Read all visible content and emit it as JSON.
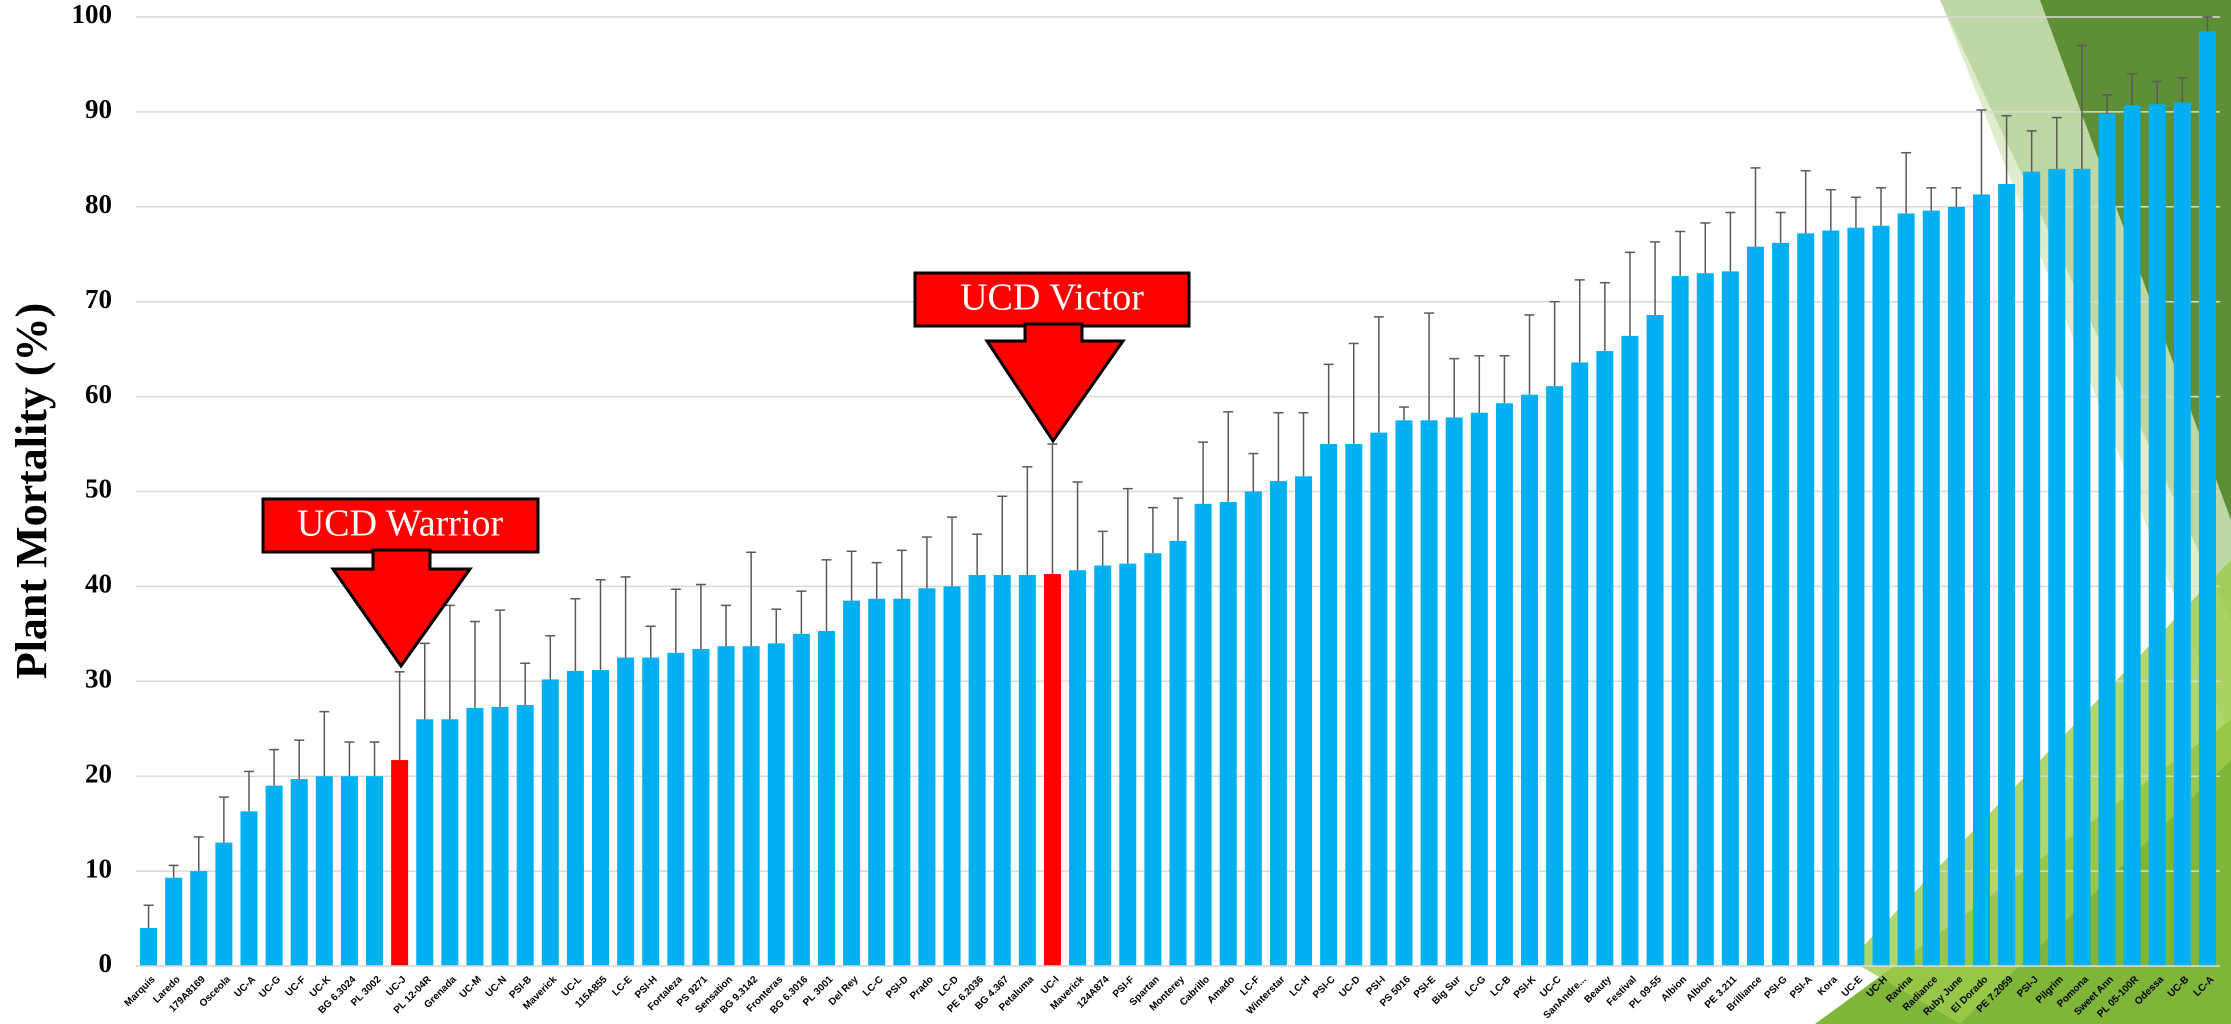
{
  "chart_data": {
    "type": "bar",
    "y_label": "Plant Mortality (%)",
    "categories": [
      "Marquis",
      "Laredo",
      "179A8169",
      "Osceola",
      "UC-A",
      "UC-G",
      "UC-F",
      "UC-K",
      "BG 6.3024",
      "PL 3002",
      "UC-J",
      "PL 12-04R",
      "Grenada",
      "UC-M",
      "UC-N",
      "PSI-B",
      "Maverick",
      "UC-L",
      "115A855",
      "LC-E",
      "PSI-H",
      "Fortaleza",
      "PS 9271",
      "Sensation",
      "BG 9.3142",
      "Fronteras",
      "BG 6.3016",
      "PL 3001",
      "Del Rey",
      "LC-C",
      "PSI-D",
      "Prado",
      "LC-D",
      "PE 6.2036",
      "BG 4.367",
      "Petaluma",
      "UC-I",
      "Maverick",
      "124A874",
      "PSI-F",
      "Spartan",
      "Monterey",
      "Cabrillo",
      "Amado",
      "LC-F",
      "Winterstar",
      "LC-H",
      "PSI-C",
      "UC-D",
      "PSI-I",
      "PS 5016",
      "PSI-E",
      "Big Sur",
      "LC-G",
      "LC-B",
      "PSI-K",
      "UC-C",
      "SanAndre...",
      "Beauty",
      "Festival",
      "PL 09-55",
      "Albion",
      "Albion",
      "PE 3.211",
      "Brilliance",
      "PSI-G",
      "PSI-A",
      "Kora",
      "UC-E",
      "UC-H",
      "Ravina",
      "Radiance",
      "Ruby June",
      "El Dorado",
      "PE 7.2059",
      "PSI-J",
      "Pilgrim",
      "Pomona",
      "Sweet Ann",
      "PL 05-100R",
      "Odessa",
      "UC-B",
      "LC-A"
    ],
    "values": [
      4,
      9.3,
      10,
      13,
      16.3,
      19,
      19.7,
      20,
      20,
      20,
      21.7,
      26,
      26,
      27.2,
      27.3,
      27.5,
      30.2,
      31.1,
      31.2,
      32.5,
      32.5,
      33,
      33.4,
      33.7,
      33.7,
      34,
      35,
      35.3,
      38.5,
      38.7,
      38.7,
      39.8,
      40,
      41.2,
      41.2,
      41.2,
      41.3,
      41.7,
      42.2,
      42.4,
      43.5,
      44.8,
      48.7,
      48.9,
      50,
      51.1,
      51.6,
      55,
      55,
      56.2,
      57.5,
      57.5,
      57.8,
      58.3,
      59.3,
      60.2,
      61.1,
      63.6,
      64.8,
      66.4,
      68.6,
      72.7,
      73,
      73.2,
      75.8,
      76.2,
      77.2,
      77.5,
      77.8,
      78,
      79.3,
      79.6,
      80,
      81.3,
      82.4,
      83.7,
      84,
      84,
      89.8,
      90.7,
      90.8,
      91,
      98.5
    ],
    "errors": [
      2.4,
      1.3,
      3.6,
      4.8,
      4.2,
      3.8,
      4.1,
      6.8,
      3.6,
      3.6,
      9.3,
      8,
      12,
      9.1,
      10.2,
      4.4,
      4.6,
      7.6,
      9.5,
      8.5,
      3.3,
      6.7,
      6.8,
      4.3,
      9.9,
      3.6,
      4.5,
      7.5,
      5.2,
      3.8,
      5.1,
      5.4,
      7.3,
      4.3,
      8.3,
      11.4,
      13.7,
      9.3,
      3.6,
      7.9,
      4.8,
      4.5,
      6.5,
      9.5,
      4,
      7.2,
      6.7,
      8.4,
      10.6,
      12.2,
      1.4,
      11.3,
      6.2,
      6,
      5,
      8.4,
      8.9,
      8.7,
      7.2,
      8.8,
      7.7,
      4.7,
      5.3,
      6.2,
      8.3,
      3.2,
      6.6,
      4.3,
      3.2,
      4,
      6.4,
      2.4,
      2,
      8.9,
      7.2,
      4.3,
      5.4,
      13,
      2,
      3.3,
      2.4,
      2.6,
      1.5
    ],
    "colors": [
      "#00b0f0",
      "#00b0f0",
      "#00b0f0",
      "#00b0f0",
      "#00b0f0",
      "#00b0f0",
      "#00b0f0",
      "#00b0f0",
      "#00b0f0",
      "#00b0f0",
      "#ff0000",
      "#00b0f0",
      "#00b0f0",
      "#00b0f0",
      "#00b0f0",
      "#00b0f0",
      "#00b0f0",
      "#00b0f0",
      "#00b0f0",
      "#00b0f0",
      "#00b0f0",
      "#00b0f0",
      "#00b0f0",
      "#00b0f0",
      "#00b0f0",
      "#00b0f0",
      "#00b0f0",
      "#00b0f0",
      "#00b0f0",
      "#00b0f0",
      "#00b0f0",
      "#00b0f0",
      "#00b0f0",
      "#00b0f0",
      "#00b0f0",
      "#00b0f0",
      "#ff0000",
      "#00b0f0",
      "#00b0f0",
      "#00b0f0",
      "#00b0f0",
      "#00b0f0",
      "#00b0f0",
      "#00b0f0",
      "#00b0f0",
      "#00b0f0",
      "#00b0f0",
      "#00b0f0",
      "#00b0f0",
      "#00b0f0",
      "#00b0f0",
      "#00b0f0",
      "#00b0f0",
      "#00b0f0",
      "#00b0f0",
      "#00b0f0",
      "#00b0f0",
      "#00b0f0",
      "#00b0f0",
      "#00b0f0",
      "#00b0f0",
      "#00b0f0",
      "#00b0f0",
      "#00b0f0",
      "#00b0f0",
      "#00b0f0",
      "#00b0f0",
      "#00b0f0",
      "#00b0f0",
      "#00b0f0",
      "#00b0f0",
      "#00b0f0",
      "#00b0f0",
      "#00b0f0",
      "#00b0f0",
      "#00b0f0",
      "#00b0f0",
      "#00b0f0",
      "#00b0f0",
      "#00b0f0",
      "#00b0f0",
      "#00b0f0",
      "#00b0f0"
    ],
    "error_color": "#595959",
    "ylim": [
      0,
      100
    ],
    "yticks": [
      0,
      10,
      20,
      30,
      40,
      50,
      60,
      70,
      80,
      90,
      100
    ],
    "grid": true,
    "annotations": [
      {
        "text": "UCD Warrior",
        "color": "#ff0000"
      },
      {
        "text": "UCD Victor",
        "color": "#ff0000"
      }
    ]
  }
}
